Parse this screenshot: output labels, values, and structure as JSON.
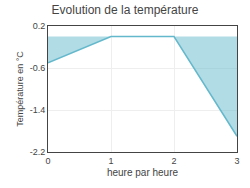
{
  "chart_data": {
    "type": "area",
    "title": "Evolution de la température",
    "xlabel": "heure par heure",
    "ylabel": "Température en °C",
    "x": [
      0,
      1,
      2,
      3
    ],
    "values": [
      -0.5,
      0.0,
      0.0,
      -1.9
    ],
    "color": "#64b8cc",
    "xlim": [
      0,
      3
    ],
    "ylim": [
      -2.2,
      0.2
    ],
    "xticks": [
      0,
      1,
      2,
      3
    ],
    "yticks": [
      0.2,
      -0.6,
      -1.4,
      -2.2
    ],
    "grid": true
  }
}
